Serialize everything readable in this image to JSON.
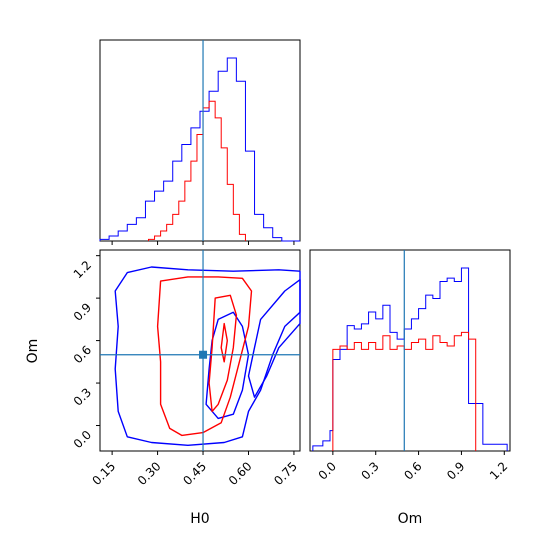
{
  "colors": {
    "series_a": "#0000ff",
    "series_b": "#ff0000",
    "truth": "#1f77b4",
    "frame": "#000000"
  },
  "chart_data": [
    {
      "type": "histogram",
      "panel": "H0 marginal",
      "xlim": [
        0.11,
        0.77
      ],
      "truth": 0.45,
      "bin_edges": [
        0.11,
        0.14,
        0.17,
        0.2,
        0.23,
        0.26,
        0.29,
        0.32,
        0.35,
        0.38,
        0.41,
        0.44,
        0.47,
        0.5,
        0.53,
        0.56,
        0.59,
        0.62,
        0.65,
        0.68,
        0.71,
        0.74,
        0.77
      ],
      "series": [
        {
          "counts": [
            1,
            3,
            6,
            10,
            14,
            24,
            30,
            36,
            48,
            58,
            68,
            78,
            90,
            102,
            110,
            96,
            54,
            16,
            8,
            2,
            0,
            0
          ]
        },
        {
          "counts": [
            0,
            0,
            0,
            0,
            0,
            0,
            0,
            0,
            0,
            0,
            0,
            0,
            0,
            0,
            0,
            0,
            0,
            0,
            0,
            0,
            0,
            0
          ]
        }
      ],
      "series_b_edges": [
        0.27,
        0.29,
        0.31,
        0.33,
        0.35,
        0.37,
        0.39,
        0.41,
        0.43,
        0.45,
        0.47,
        0.49,
        0.51,
        0.53,
        0.55,
        0.57,
        0.59
      ],
      "series_b_counts": [
        1,
        3,
        6,
        10,
        16,
        24,
        36,
        48,
        64,
        80,
        84,
        74,
        56,
        34,
        16,
        4
      ]
    },
    {
      "type": "contour",
      "panel": "H0 vs Om",
      "xlim": [
        0.11,
        0.77
      ],
      "ylim": [
        -0.18,
        1.24
      ],
      "truth": {
        "x": 0.45,
        "y": 0.5
      },
      "xticks": [
        "0.15",
        "0.30",
        "0.45",
        "0.60",
        "0.75"
      ],
      "yticks": [
        "0.0",
        "0.3",
        "0.6",
        "0.9",
        "1.2"
      ],
      "series": [
        {
          "color_key": "series_a",
          "contours": [
            [
              [
                0.2,
                1.08
              ],
              [
                0.28,
                1.12
              ],
              [
                0.4,
                1.1
              ],
              [
                0.55,
                1.09
              ],
              [
                0.7,
                1.1
              ],
              [
                0.77,
                1.09
              ],
              [
                0.77,
                0.8
              ],
              [
                0.72,
                0.7
              ],
              [
                0.68,
                0.5
              ],
              [
                0.64,
                0.25
              ],
              [
                0.6,
                0.1
              ],
              [
                0.58,
                -0.08
              ],
              [
                0.52,
                -0.12
              ],
              [
                0.4,
                -0.14
              ],
              [
                0.28,
                -0.12
              ],
              [
                0.2,
                -0.08
              ],
              [
                0.17,
                0.1
              ],
              [
                0.16,
                0.4
              ],
              [
                0.17,
                0.7
              ],
              [
                0.16,
                0.95
              ],
              [
                0.2,
                1.08
              ]
            ],
            [
              [
                0.5,
                0.75
              ],
              [
                0.55,
                0.8
              ],
              [
                0.58,
                0.7
              ],
              [
                0.6,
                0.5
              ],
              [
                0.58,
                0.25
              ],
              [
                0.55,
                0.08
              ],
              [
                0.5,
                0.05
              ],
              [
                0.46,
                0.15
              ],
              [
                0.47,
                0.4
              ],
              [
                0.48,
                0.6
              ],
              [
                0.5,
                0.75
              ]
            ],
            [
              [
                0.64,
                0.75
              ],
              [
                0.72,
                0.95
              ],
              [
                0.77,
                1.03
              ],
              [
                0.77,
                0.72
              ],
              [
                0.7,
                0.55
              ],
              [
                0.66,
                0.35
              ],
              [
                0.62,
                0.2
              ],
              [
                0.6,
                0.35
              ],
              [
                0.62,
                0.55
              ],
              [
                0.64,
                0.75
              ]
            ]
          ]
        },
        {
          "color_key": "series_b",
          "contours": [
            [
              [
                0.31,
                1.02
              ],
              [
                0.4,
                1.05
              ],
              [
                0.5,
                1.05
              ],
              [
                0.58,
                1.04
              ],
              [
                0.61,
                0.95
              ],
              [
                0.6,
                0.7
              ],
              [
                0.57,
                0.45
              ],
              [
                0.54,
                0.2
              ],
              [
                0.51,
                0.02
              ],
              [
                0.45,
                -0.05
              ],
              [
                0.38,
                -0.07
              ],
              [
                0.34,
                -0.02
              ],
              [
                0.31,
                0.15
              ],
              [
                0.31,
                0.45
              ],
              [
                0.3,
                0.7
              ],
              [
                0.31,
                1.02
              ]
            ],
            [
              [
                0.49,
                0.9
              ],
              [
                0.54,
                0.92
              ],
              [
                0.56,
                0.78
              ],
              [
                0.55,
                0.55
              ],
              [
                0.53,
                0.32
              ],
              [
                0.5,
                0.15
              ],
              [
                0.48,
                0.1
              ],
              [
                0.47,
                0.3
              ],
              [
                0.48,
                0.55
              ],
              [
                0.49,
                0.9
              ]
            ],
            [
              [
                0.52,
                0.72
              ],
              [
                0.53,
                0.6
              ],
              [
                0.52,
                0.45
              ],
              [
                0.51,
                0.55
              ],
              [
                0.52,
                0.72
              ]
            ]
          ]
        }
      ]
    },
    {
      "type": "histogram",
      "panel": "Om marginal",
      "xlim": [
        -0.16,
        1.24
      ],
      "truth": 0.5,
      "xticks": [
        "0.0",
        "0.3",
        "0.6",
        "0.9",
        "1.2"
      ],
      "series": [
        {
          "color_key": "series_a",
          "edges": [
            -0.14,
            -0.07,
            -0.02,
            0.0,
            0.05,
            0.1,
            0.15,
            0.2,
            0.25,
            0.3,
            0.35,
            0.4,
            0.45,
            0.5,
            0.55,
            0.6,
            0.65,
            0.7,
            0.75,
            0.8,
            0.85,
            0.9,
            0.95,
            1.0,
            1.05,
            1.1,
            1.15,
            1.2,
            1.22
          ],
          "counts": [
            3,
            6,
            12,
            54,
            60,
            74,
            72,
            75,
            82,
            78,
            86,
            70,
            66,
            72,
            78,
            84,
            92,
            90,
            100,
            102,
            100,
            108,
            28,
            28,
            4,
            4,
            4,
            4
          ]
        },
        {
          "color_key": "series_b",
          "edges": [
            0.0,
            0.05,
            0.1,
            0.15,
            0.2,
            0.25,
            0.3,
            0.35,
            0.4,
            0.45,
            0.5,
            0.55,
            0.6,
            0.65,
            0.7,
            0.75,
            0.8,
            0.85,
            0.9,
            0.95,
            1.0
          ],
          "counts": [
            60,
            62,
            60,
            64,
            60,
            64,
            60,
            68,
            60,
            62,
            60,
            64,
            66,
            60,
            68,
            64,
            62,
            68,
            70,
            66
          ]
        }
      ]
    }
  ],
  "axes": {
    "bottom_left_xlabel": "H0",
    "bottom_left_ylabel": "Om",
    "bottom_right_xlabel": "Om"
  }
}
